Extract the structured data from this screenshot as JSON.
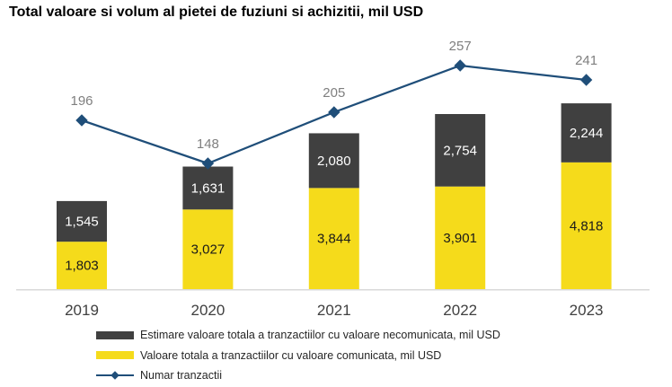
{
  "title": "Total valoare si volum al pietei de fuziuni si achizitii, mil USD",
  "colors": {
    "bar_dark": "#404040",
    "bar_yellow": "#F5DB1B",
    "line_blue": "#1F4E79",
    "line_label": "#7F7F7F",
    "axis_line": "#D9D9D9",
    "label_on_dark": "#FFFFFF",
    "label_on_yellow": "#1A1A1A",
    "year_label": "#404040"
  },
  "chart_data": {
    "type": "bar",
    "subtype": "stacked-bar-with-line",
    "title": "Total valoare si volum al pietei de fuziuni si achizitii, mil USD",
    "categories": [
      "2019",
      "2020",
      "2021",
      "2022",
      "2023"
    ],
    "series": [
      {
        "name": "Estimare valoare totala a tranzactiilor cu valoare necomunicata, mil USD",
        "type": "bar",
        "stack": "total",
        "color": "#404040",
        "values": [
          1545,
          1631,
          2080,
          2754,
          2244
        ],
        "labels": [
          "1,545",
          "1,631",
          "2,080",
          "2,754",
          "2,244"
        ]
      },
      {
        "name": "Valoare totala a tranzactiilor cu valoare comunicata, mil USD",
        "type": "bar",
        "stack": "total",
        "color": "#F5DB1B",
        "values": [
          1803,
          3027,
          3844,
          3901,
          4818
        ],
        "labels": [
          "1,803",
          "3,027",
          "3,844",
          "3,901",
          "4,818"
        ]
      },
      {
        "name": "Numar tranzactii",
        "type": "line",
        "marker": "diamond",
        "color": "#1F4E79",
        "values": [
          196,
          148,
          205,
          257,
          241
        ],
        "labels": [
          "196",
          "148",
          "205",
          "257",
          "241"
        ]
      }
    ],
    "xlabel": "",
    "ylabel": "",
    "grid": false,
    "legend_position": "bottom",
    "data_labels": true
  },
  "legend": {
    "items": [
      {
        "label": "Estimare valoare totala a tranzactiilor cu valoare necomunicata, mil USD",
        "swatch": "dark-bar"
      },
      {
        "label": "Valoare totala a tranzactiilor cu valoare comunicata, mil USD",
        "swatch": "yellow-bar"
      },
      {
        "label": "Numar tranzactii",
        "swatch": "line-diamond"
      }
    ]
  }
}
